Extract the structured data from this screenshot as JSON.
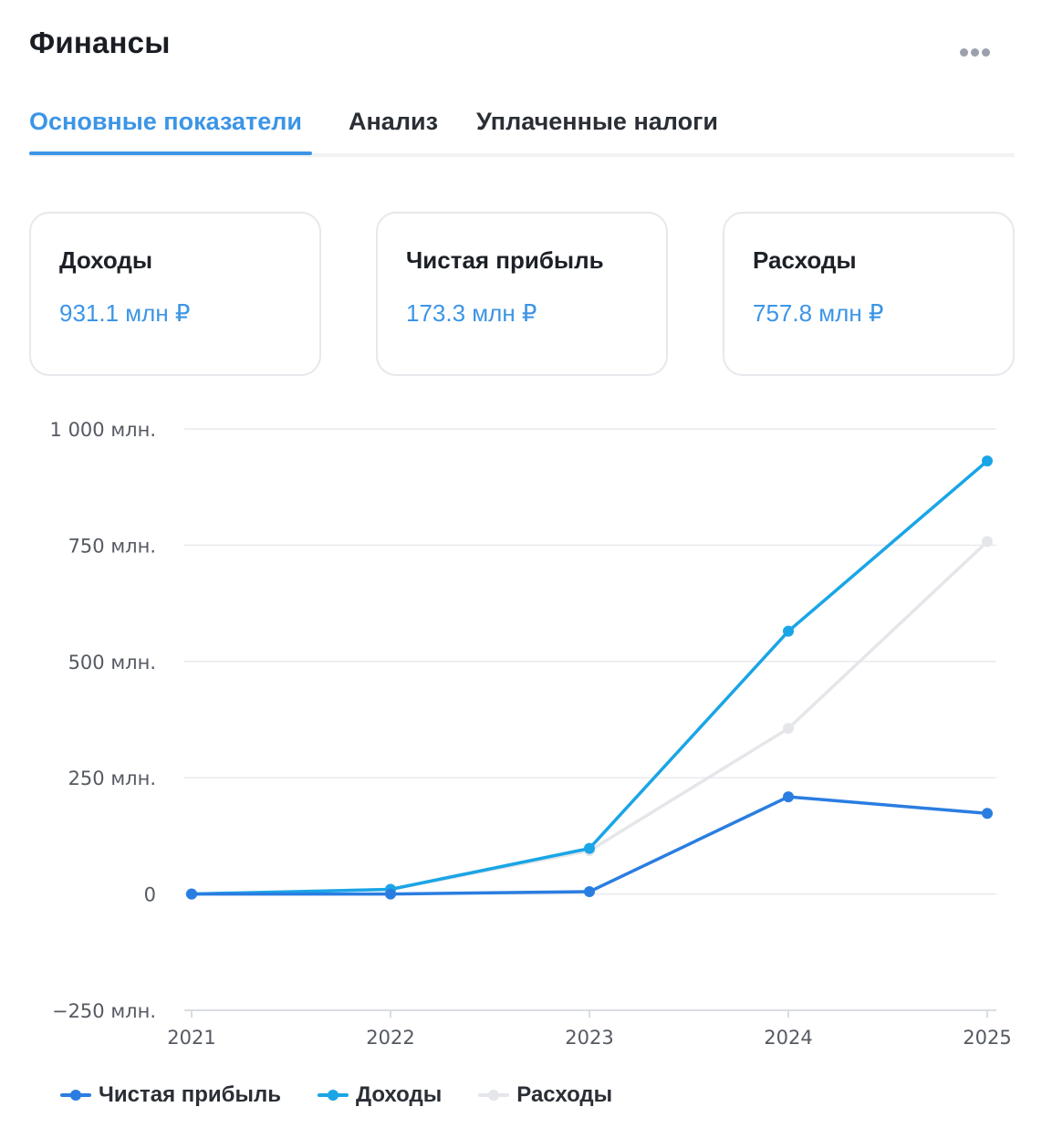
{
  "header": {
    "title": "Финансы",
    "more_icon": "more-horizontal-icon"
  },
  "tabs": [
    {
      "label": "Основные показатели",
      "active": true
    },
    {
      "label": "Анализ",
      "active": false
    },
    {
      "label": "Уплаченные налоги",
      "active": false
    }
  ],
  "cards": [
    {
      "label": "Доходы",
      "value": "931.1 млн ₽"
    },
    {
      "label": "Чистая прибыль",
      "value": "173.3 млн ₽"
    },
    {
      "label": "Расходы",
      "value": "757.8 млн ₽"
    }
  ],
  "colors": {
    "accent": "#3c95e6",
    "profit": "#2a7de1",
    "income": "#1aa5e6",
    "expenses": "#e4e6ea",
    "grid": "#e8eaee",
    "tick": "#555a62"
  },
  "chart_data": {
    "type": "line",
    "title": "",
    "xlabel": "",
    "ylabel": "",
    "x": [
      "2021",
      "2022",
      "2023",
      "2024",
      "2025"
    ],
    "ylim": [
      -250,
      1000
    ],
    "yticks": [
      -250,
      0,
      250,
      500,
      750,
      1000
    ],
    "ytick_labels": [
      "−250 млн.",
      "0",
      "250 млн.",
      "500 млн.",
      "750 млн.",
      "1 000 млн."
    ],
    "grid": true,
    "legend_position": "bottom-left",
    "series": [
      {
        "name": "Чистая прибыль",
        "values": [
          0,
          0,
          5,
          209,
          173.3
        ]
      },
      {
        "name": "Доходы",
        "values": [
          0,
          10,
          98,
          565,
          931.1
        ]
      },
      {
        "name": "Расходы",
        "values": [
          0,
          10,
          93,
          356,
          757.8
        ]
      }
    ]
  }
}
